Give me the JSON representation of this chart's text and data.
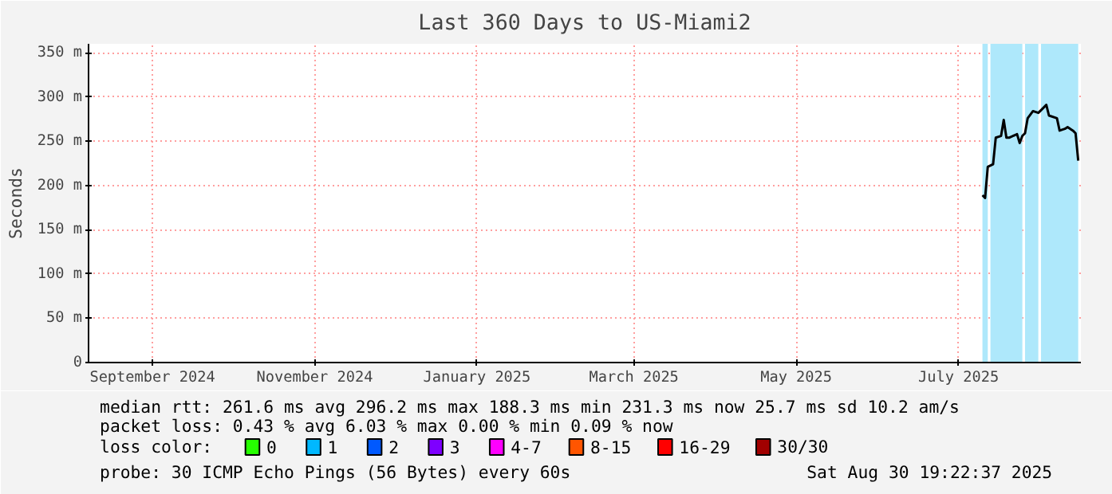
{
  "chart_data": {
    "type": "line",
    "title": "Last 360 Days to US-Miami2",
    "ylabel": "Seconds",
    "x": [
      "2025-07-24",
      "2025-07-25",
      "2025-07-26",
      "2025-07-28",
      "2025-07-29",
      "2025-07-31",
      "2025-08-01",
      "2025-08-02",
      "2025-08-03",
      "2025-08-06",
      "2025-08-07",
      "2025-08-08",
      "2025-08-09",
      "2025-08-10",
      "2025-08-12",
      "2025-08-14",
      "2025-08-15",
      "2025-08-17",
      "2025-08-18",
      "2025-08-21",
      "2025-08-22",
      "2025-08-24",
      "2025-08-25",
      "2025-08-27",
      "2025-08-28",
      "2025-08-29"
    ],
    "series": [
      {
        "color": "#000000",
        "values": [
          189,
          186,
          221,
          224,
          254,
          256,
          274,
          254,
          254,
          258,
          248,
          256,
          259,
          276,
          284,
          282,
          285,
          291,
          279,
          276,
          262,
          264,
          266,
          262,
          259,
          228
        ]
      },
      {
        "name": "0",
        "color": "#26ff00",
        "values": [
          null,
          null,
          null,
          null,
          null,
          null,
          null,
          null,
          null,
          null,
          null,
          null,
          null,
          null,
          null,
          null,
          null,
          null,
          null,
          null,
          null,
          null,
          null,
          null,
          null,
          null
        ]
      },
      {
        "name": "1",
        "color": "#00b8ff",
        "values": [
          null,
          null,
          null,
          null,
          null,
          null,
          null,
          null,
          null,
          null,
          null,
          null,
          null,
          null,
          null,
          null,
          null,
          null,
          null,
          null,
          null,
          null,
          null,
          null,
          null,
          null
        ]
      },
      {
        "name": "2",
        "color": "#0059ff",
        "values": [
          null,
          null,
          null,
          null,
          null,
          null,
          null,
          null,
          null,
          null,
          null,
          null,
          null,
          null,
          null,
          null,
          null,
          null,
          null,
          null,
          null,
          null,
          null,
          null,
          null,
          null
        ]
      },
      {
        "name": "3",
        "color": "#7e00ff",
        "values": [
          null,
          null,
          null,
          null,
          null,
          null,
          null,
          null,
          null,
          null,
          null,
          null,
          null,
          null,
          null,
          null,
          null,
          null,
          null,
          null,
          null,
          null,
          null,
          null,
          null,
          null
        ]
      },
      {
        "name": "4-7",
        "color": "#ff00ff",
        "values": [
          null,
          null,
          null,
          null,
          null,
          null,
          null,
          null,
          null,
          null,
          null,
          null,
          null,
          null,
          null,
          null,
          null,
          null,
          null,
          null,
          null,
          null,
          null,
          null,
          null,
          null
        ]
      },
      {
        "name": "8-15",
        "color": "#ff5500",
        "values": [
          null,
          null,
          null,
          null,
          null,
          null,
          null,
          null,
          null,
          null,
          null,
          null,
          null,
          null,
          null,
          null,
          null,
          null,
          null,
          null,
          null,
          null,
          null,
          null,
          null,
          null
        ]
      },
      {
        "name": "16-29",
        "color": "#ff0000",
        "values": [
          null,
          null,
          null,
          null,
          null,
          null,
          null,
          null,
          null,
          null,
          null,
          null,
          null,
          null,
          null,
          null,
          null,
          null,
          null,
          null,
          null,
          null,
          null,
          null,
          null,
          null
        ]
      },
      {
        "name": "30/30",
        "color": "#a10000",
        "values": [
          null,
          null,
          null,
          null,
          null,
          null,
          null,
          null,
          null,
          null,
          null,
          null,
          null,
          null,
          null,
          null,
          null,
          null,
          null,
          null,
          null,
          null,
          null,
          null,
          null,
          null
        ]
      }
    ],
    "legend": "bottom",
    "legend_title": "loss color:",
    "bands": [
      {
        "axis": "x",
        "from": "2025-07-24",
        "to": "2025-07-26",
        "color": "#aee8fb"
      },
      {
        "axis": "x",
        "from": "2025-07-27",
        "to": "2025-08-08",
        "color": "#aee8fb"
      },
      {
        "axis": "x",
        "from": "2025-08-09",
        "to": "2025-08-14",
        "color": "#aee8fb"
      },
      {
        "axis": "x",
        "from": "2025-08-15",
        "to": "2025-08-29",
        "color": "#aee8fb"
      }
    ],
    "xlim": [
      "2024-08-22",
      "2025-08-30"
    ],
    "xticks": [
      {
        "value": "2024-09-15",
        "label": "September 2024"
      },
      {
        "value": "2024-11-15",
        "label": "November 2024"
      },
      {
        "value": "2025-01-15",
        "label": "January 2025"
      },
      {
        "value": "2025-03-15",
        "label": "March 2025"
      },
      {
        "value": "2025-05-15",
        "label": "May 2025"
      },
      {
        "value": "2025-07-15",
        "label": "July 2025"
      }
    ],
    "ylim": [
      0,
      360
    ],
    "yticks": [
      0,
      {
        "value": 50,
        "label": "50 m"
      },
      {
        "value": 100,
        "label": "100 m"
      },
      {
        "value": 150,
        "label": "150 m"
      },
      {
        "value": 200,
        "label": "200 m"
      },
      {
        "value": 250,
        "label": "250 m"
      },
      {
        "value": 300,
        "label": "300 m"
      },
      {
        "value": 350,
        "label": "350 m"
      }
    ],
    "grid": true,
    "annotations": [
      "median rtt:  261.6 ms avg  296.2 ms max  188.3 ms min  231.3 ms now  25.7 ms sd  10.2   am/s",
      "packet loss: 0.43 % avg  6.03 % max  0.00 % min  0.09 % now",
      "probe:       30 ICMP Echo Pings (56 Bytes) every 60s",
      "Sat Aug 30 19:22:37 2025"
    ]
  }
}
